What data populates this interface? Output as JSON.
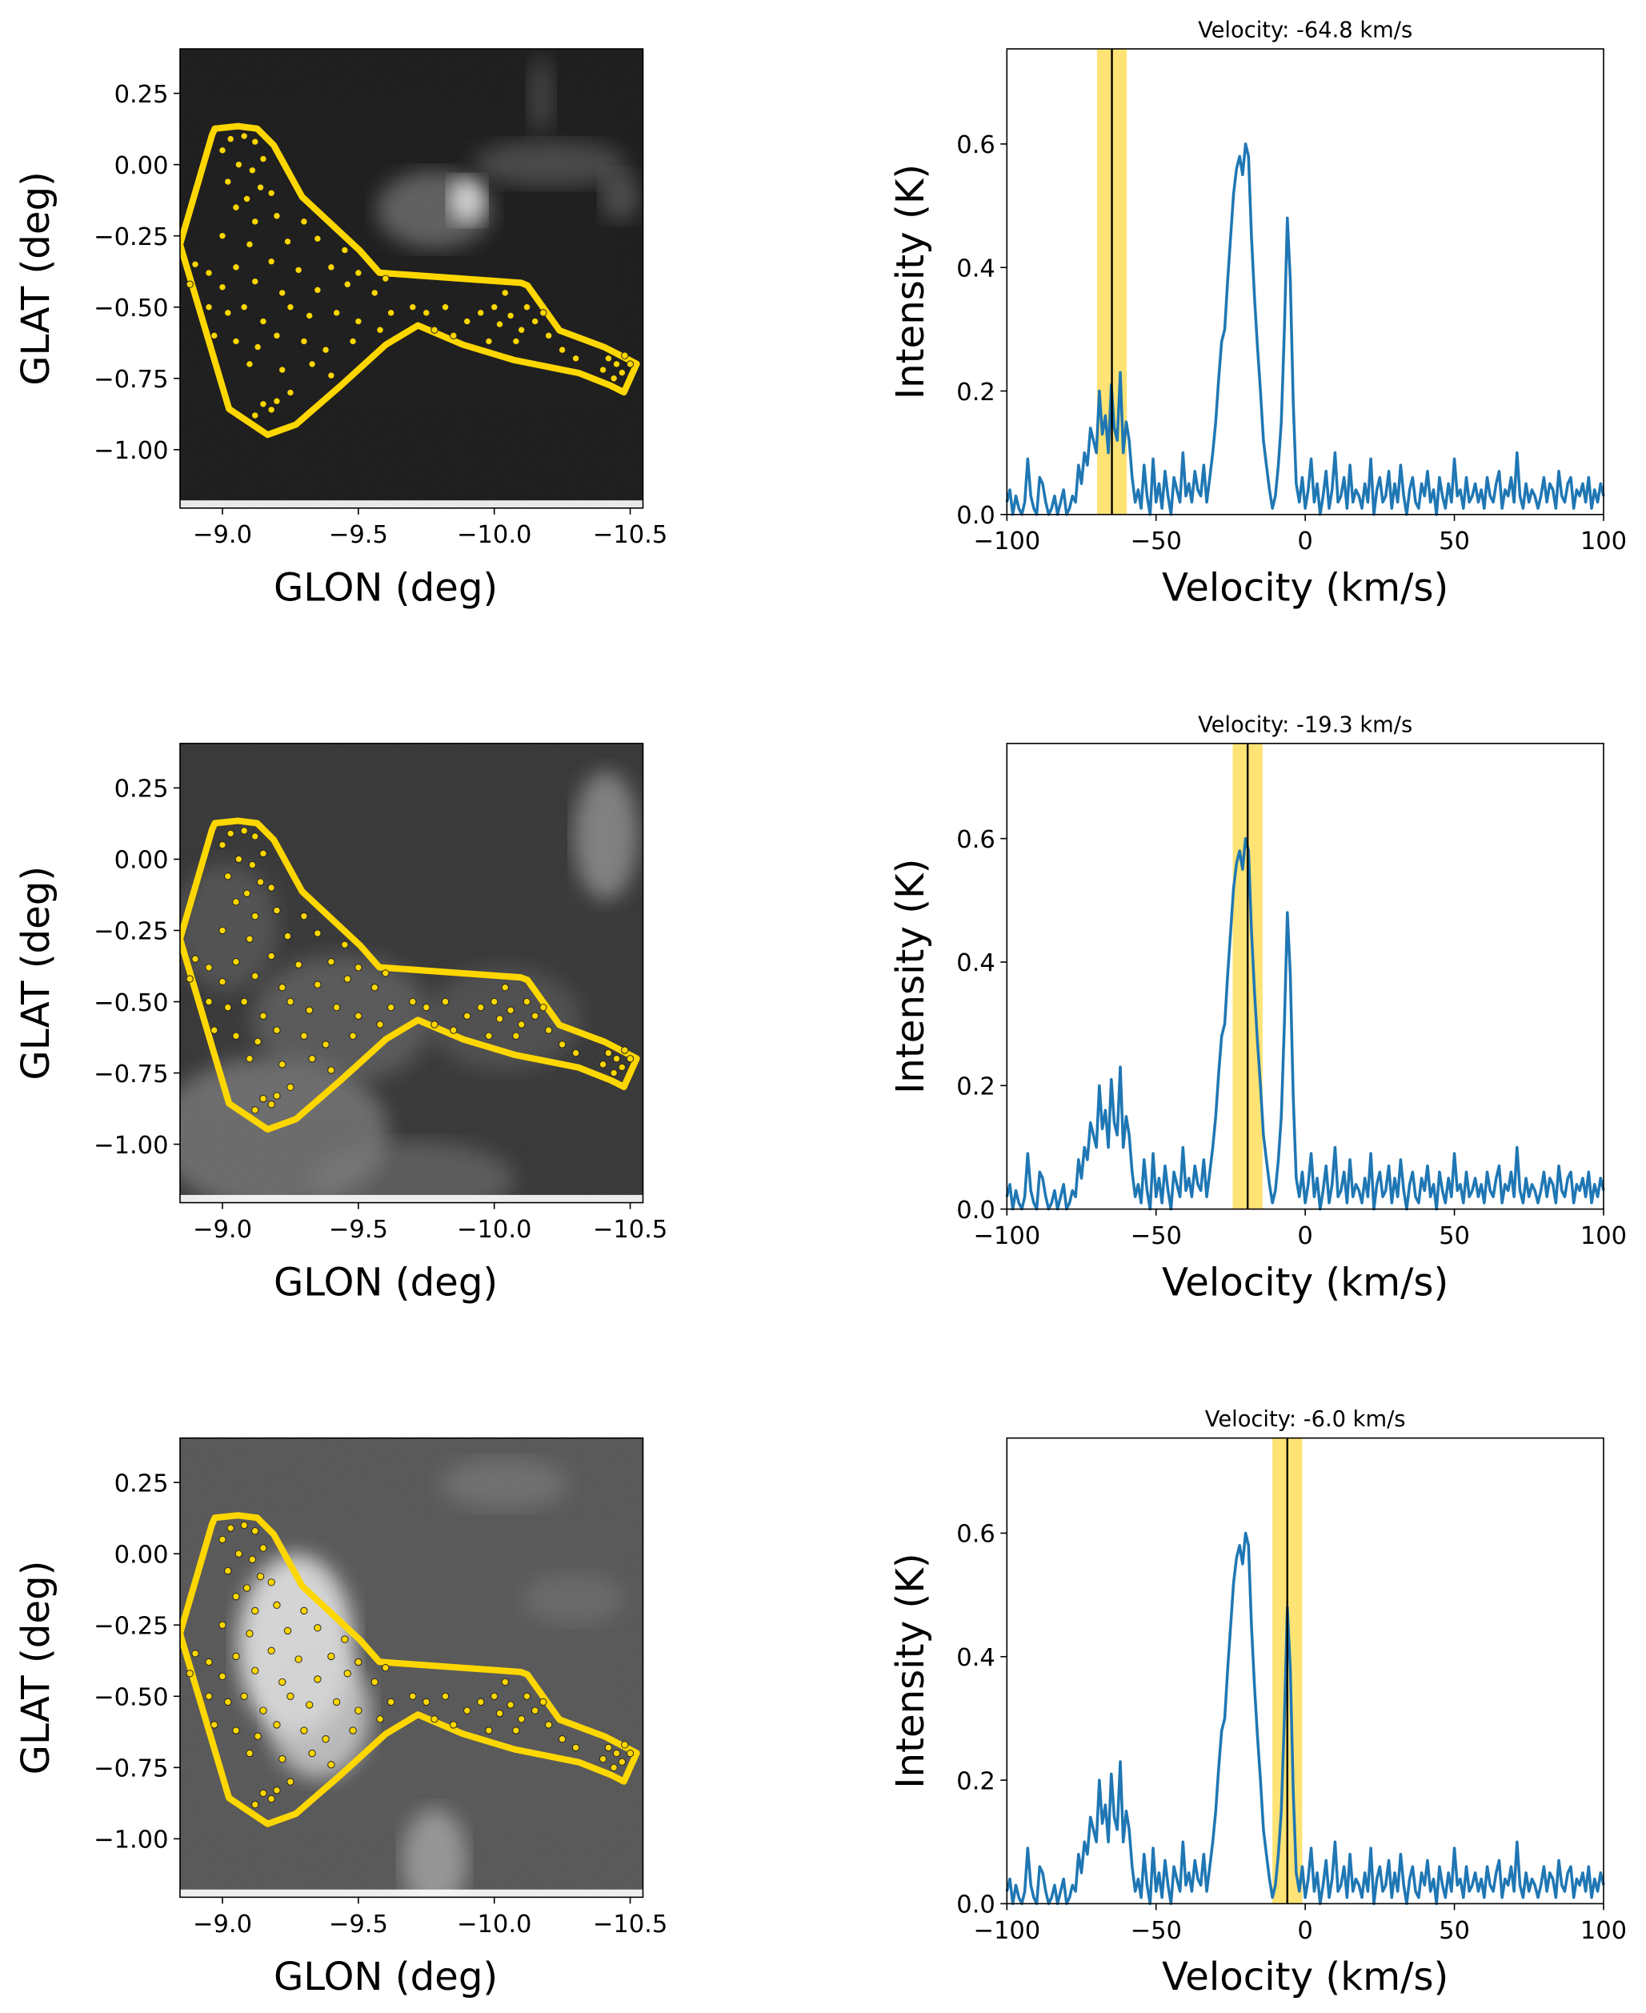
{
  "chart_data": [
    {
      "type": "image-with-overlay",
      "panels": [
        {
          "colormap": "gray",
          "emission": "faint, upper right"
        },
        {
          "colormap": "gray",
          "emission": "diffuse, widespread"
        },
        {
          "colormap": "gray",
          "emission": "bright, inside polygon"
        }
      ],
      "xlabel": "GLON (deg)",
      "ylabel": "GLAT (deg)",
      "xlim": [
        -8.844,
        -10.547
      ],
      "ylim": [
        -1.205,
        0.406
      ],
      "xticks": [
        -9.0,
        -9.5,
        -10.0,
        -10.5
      ],
      "xtick_labels": [
        "−9.0",
        "−9.5",
        "−10.0",
        "−10.5"
      ],
      "yticks": [
        0.25,
        0.0,
        -0.25,
        -0.5,
        -0.75,
        -1.0
      ],
      "ytick_labels": [
        "0.25",
        "0.00",
        "−0.25",
        "−0.50",
        "−0.75",
        "−1.00"
      ],
      "polygon_color": "#FFD700",
      "point_color": "#FFD700",
      "polygon": [
        [
          -8.972,
          0.126
        ],
        [
          -9.057,
          0.135
        ],
        [
          -9.128,
          0.126
        ],
        [
          -9.189,
          0.068
        ],
        [
          -9.293,
          -0.113
        ],
        [
          -9.506,
          -0.302
        ],
        [
          -9.577,
          -0.379
        ],
        [
          -9.648,
          -0.384
        ],
        [
          -10.098,
          -0.415
        ],
        [
          -10.122,
          -0.424
        ],
        [
          -10.24,
          -0.582
        ],
        [
          -10.406,
          -0.641
        ],
        [
          -10.524,
          -0.699
        ],
        [
          -10.477,
          -0.799
        ],
        [
          -10.429,
          -0.776
        ],
        [
          -10.311,
          -0.731
        ],
        [
          -10.074,
          -0.686
        ],
        [
          -9.885,
          -0.632
        ],
        [
          -9.719,
          -0.564
        ],
        [
          -9.601,
          -0.632
        ],
        [
          -9.435,
          -0.776
        ],
        [
          -9.27,
          -0.912
        ],
        [
          -9.166,
          -0.948
        ],
        [
          -9.024,
          -0.857
        ],
        [
          -8.844,
          -0.28
        ],
        [
          -8.962,
          0.104
        ]
      ],
      "points": [
        [
          -9.03,
          0.09
        ],
        [
          -9.08,
          0.1
        ],
        [
          -9.12,
          0.08
        ],
        [
          -9.0,
          0.05
        ],
        [
          -9.15,
          0.02
        ],
        [
          -9.06,
          0.0
        ],
        [
          -9.11,
          -0.02
        ],
        [
          -9.02,
          -0.06
        ],
        [
          -9.14,
          -0.08
        ],
        [
          -9.09,
          -0.12
        ],
        [
          -9.18,
          -0.1
        ],
        [
          -9.05,
          -0.15
        ],
        [
          -9.2,
          -0.18
        ],
        [
          -9.12,
          -0.2
        ],
        [
          -9.3,
          -0.2
        ],
        [
          -9.0,
          -0.25
        ],
        [
          -9.1,
          -0.28
        ],
        [
          -9.24,
          -0.27
        ],
        [
          -9.35,
          -0.26
        ],
        [
          -9.45,
          -0.3
        ],
        [
          -8.9,
          -0.35
        ],
        [
          -8.95,
          -0.38
        ],
        [
          -9.05,
          -0.36
        ],
        [
          -9.18,
          -0.34
        ],
        [
          -9.28,
          -0.37
        ],
        [
          -9.4,
          -0.36
        ],
        [
          -9.5,
          -0.38
        ],
        [
          -8.88,
          -0.42
        ],
        [
          -9.0,
          -0.43
        ],
        [
          -9.12,
          -0.41
        ],
        [
          -9.22,
          -0.45
        ],
        [
          -9.35,
          -0.44
        ],
        [
          -9.46,
          -0.42
        ],
        [
          -9.56,
          -0.45
        ],
        [
          -9.6,
          -0.4
        ],
        [
          -8.95,
          -0.5
        ],
        [
          -9.02,
          -0.52
        ],
        [
          -9.08,
          -0.5
        ],
        [
          -9.15,
          -0.55
        ],
        [
          -9.25,
          -0.5
        ],
        [
          -9.32,
          -0.53
        ],
        [
          -9.42,
          -0.52
        ],
        [
          -9.5,
          -0.55
        ],
        [
          -9.62,
          -0.52
        ],
        [
          -8.97,
          -0.6
        ],
        [
          -9.05,
          -0.62
        ],
        [
          -9.13,
          -0.64
        ],
        [
          -9.2,
          -0.6
        ],
        [
          -9.3,
          -0.62
        ],
        [
          -9.38,
          -0.65
        ],
        [
          -9.48,
          -0.62
        ],
        [
          -9.58,
          -0.58
        ],
        [
          -9.1,
          -0.7
        ],
        [
          -9.22,
          -0.72
        ],
        [
          -9.33,
          -0.7
        ],
        [
          -9.4,
          -0.74
        ],
        [
          -9.25,
          -0.8
        ],
        [
          -9.15,
          -0.84
        ],
        [
          -9.18,
          -0.86
        ],
        [
          -9.12,
          -0.88
        ],
        [
          -9.2,
          -0.83
        ],
        [
          -9.7,
          -0.5
        ],
        [
          -9.75,
          -0.52
        ],
        [
          -9.82,
          -0.5
        ],
        [
          -9.9,
          -0.55
        ],
        [
          -9.95,
          -0.52
        ],
        [
          -10.0,
          -0.5
        ],
        [
          -10.02,
          -0.56
        ],
        [
          -10.06,
          -0.53
        ],
        [
          -10.1,
          -0.58
        ],
        [
          -10.12,
          -0.5
        ],
        [
          -10.15,
          -0.55
        ],
        [
          -10.08,
          -0.62
        ],
        [
          -9.98,
          -0.62
        ],
        [
          -9.85,
          -0.6
        ],
        [
          -9.78,
          -0.58
        ],
        [
          -10.2,
          -0.6
        ],
        [
          -10.25,
          -0.65
        ],
        [
          -10.3,
          -0.68
        ],
        [
          -10.04,
          -0.45
        ],
        [
          -10.18,
          -0.52
        ],
        [
          -10.42,
          -0.68
        ],
        [
          -10.45,
          -0.7
        ],
        [
          -10.48,
          -0.67
        ],
        [
          -10.47,
          -0.73
        ],
        [
          -10.44,
          -0.75
        ],
        [
          -10.5,
          -0.7
        ],
        [
          -10.4,
          -0.72
        ]
      ]
    },
    {
      "type": "line",
      "xlabel": "Velocity (km/s)",
      "ylabel": "Intensity (K)",
      "xlim": [
        -100,
        100
      ],
      "ylim": [
        0,
        0.754
      ],
      "xticks": [
        -100,
        -50,
        0,
        50,
        100
      ],
      "xtick_labels": [
        "−100",
        "−50",
        "0",
        "50",
        "100"
      ],
      "yticks": [
        0.0,
        0.2,
        0.4,
        0.6
      ],
      "ytick_labels": [
        "0.0",
        "0.2",
        "0.4",
        "0.6"
      ],
      "line_color": "#1f77b4",
      "band_color": "#FFE066",
      "x_start": -100,
      "x_step": 1,
      "values": [
        0.02,
        0.04,
        0,
        0.03,
        0.01,
        0,
        0.02,
        0.09,
        0.03,
        0.01,
        0,
        0.06,
        0.05,
        0.02,
        0,
        0.01,
        0.03,
        0,
        0.02,
        0.04,
        0,
        0.01,
        0.03,
        0.02,
        0.08,
        0.05,
        0.1,
        0.08,
        0.14,
        0.12,
        0.1,
        0.2,
        0.13,
        0.16,
        0.1,
        0.21,
        0.14,
        0.12,
        0.23,
        0.1,
        0.15,
        0.12,
        0.06,
        0.02,
        0.04,
        0.01,
        0.08,
        0.03,
        0,
        0.09,
        0.02,
        0.05,
        0.01,
        0.07,
        0.03,
        0,
        0.06,
        0.04,
        0.02,
        0.1,
        0.03,
        0.05,
        0.02,
        0.07,
        0.04,
        0.03,
        0.08,
        0.02,
        0.06,
        0.1,
        0.15,
        0.22,
        0.28,
        0.3,
        0.38,
        0.45,
        0.52,
        0.56,
        0.58,
        0.55,
        0.6,
        0.58,
        0.45,
        0.35,
        0.27,
        0.2,
        0.12,
        0.08,
        0.04,
        0.01,
        0.03,
        0.08,
        0.15,
        0.3,
        0.48,
        0.38,
        0.18,
        0.05,
        0.02,
        0.06,
        0.01,
        0.04,
        0.09,
        0.02,
        0.05,
        0,
        0.03,
        0.07,
        0.01,
        0.04,
        0.1,
        0.02,
        0.03,
        0.06,
        0.01,
        0.08,
        0.02,
        0.04,
        0.03,
        0.01,
        0.05,
        0.02,
        0.09,
        0,
        0.04,
        0.06,
        0.02,
        0.03,
        0.07,
        0.01,
        0.05,
        0.02,
        0.08,
        0.03,
        0,
        0.04,
        0.06,
        0.02,
        0.01,
        0.05,
        0.03,
        0.07,
        0.02,
        0.04,
        0,
        0.06,
        0.03,
        0.01,
        0.05,
        0.02,
        0.09,
        0.03,
        0.04,
        0.01,
        0.06,
        0.02,
        0.03,
        0.05,
        0.02,
        0.04,
        0.01,
        0.06,
        0.03,
        0.02,
        0.05,
        0.07,
        0.01,
        0.04,
        0.03,
        0.06,
        0.02,
        0.1,
        0.03,
        0.01,
        0.05,
        0.02,
        0.04,
        0.03,
        0.01,
        0.03,
        0.06,
        0.02,
        0.05,
        0.04,
        0.01,
        0.07,
        0.03,
        0.02,
        0.05,
        0.06,
        0.01,
        0.04,
        0.03,
        0.05,
        0.02,
        0.06,
        0.01,
        0.04,
        0.02,
        0.05,
        0.03
      ],
      "panels": [
        {
          "title": "Velocity: -64.8 km/s",
          "velocity": -64.8,
          "band": [
            -69.8,
            -59.8
          ]
        },
        {
          "title": "Velocity: -19.3 km/s",
          "velocity": -19.3,
          "band": [
            -24.3,
            -14.3
          ]
        },
        {
          "title": "Velocity: -6.0 km/s",
          "velocity": -6.0,
          "band": [
            -11.0,
            -1.0
          ]
        }
      ]
    }
  ]
}
